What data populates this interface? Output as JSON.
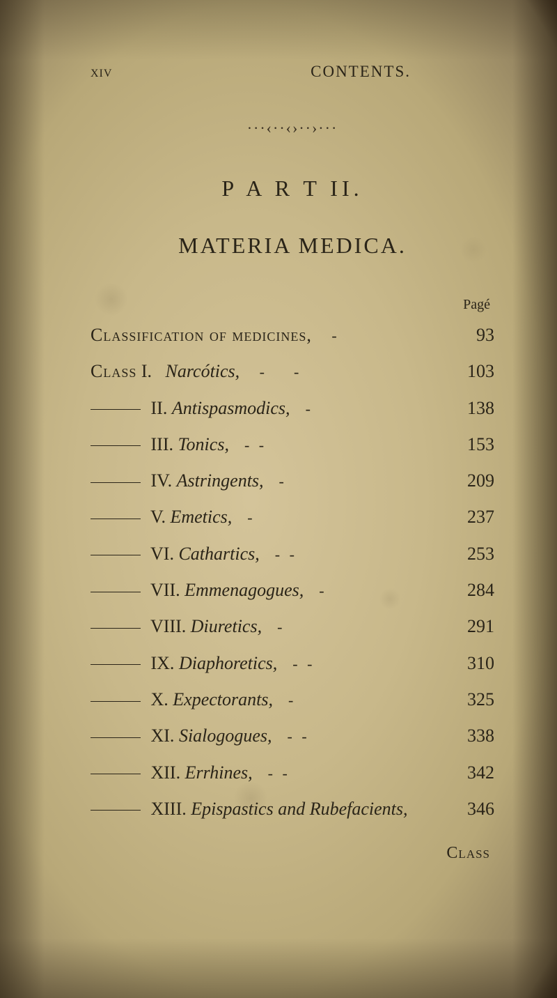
{
  "runningHead": {
    "left": "xiv",
    "right": "CONTENTS."
  },
  "ornament": "···‹··‹›··›···",
  "partTitle": "P A R T  II.",
  "mainTitle": "MATERIA MEDICA.",
  "pageLabel": "Pagé",
  "classificationLine": {
    "text": "Classification of medicines,",
    "hyphCount": 1,
    "page": "93"
  },
  "classLabel": "Class",
  "roman1": "I.",
  "narcoticsTitle": "Narcótics,",
  "narcoticsHyph": 2,
  "narcoticsPage": "103",
  "entries": [
    {
      "dashWidth": 72,
      "roman": "II.",
      "title": "Antispasmodics,",
      "hyphCount": 1,
      "page": "138"
    },
    {
      "dashWidth": 72,
      "roman": "III.",
      "title": "Tonics,",
      "hyphCount": 2,
      "page": "153"
    },
    {
      "dashWidth": 72,
      "roman": "IV.",
      "title": "Astringents,",
      "hyphCount": 1,
      "page": "209"
    },
    {
      "dashWidth": 72,
      "roman": "V.",
      "title": "Emetics,",
      "hyphCount": 1,
      "page": "237"
    },
    {
      "dashWidth": 72,
      "roman": "VI.",
      "title": "Cathartics,",
      "hyphCount": 2,
      "page": "253"
    },
    {
      "dashWidth": 72,
      "roman": "VII.",
      "title": "Emmenagogues,",
      "hyphCount": 1,
      "page": "284"
    },
    {
      "dashWidth": 72,
      "roman": "VIII.",
      "title": "Diuretics,",
      "hyphCount": 1,
      "page": "291"
    },
    {
      "dashWidth": 72,
      "roman": "IX.",
      "title": "Diaphoretics,",
      "hyphCount": 2,
      "page": "310"
    },
    {
      "dashWidth": 72,
      "roman": "X.",
      "title": "Expectorants,",
      "hyphCount": 1,
      "page": "325"
    },
    {
      "dashWidth": 72,
      "roman": "XI.",
      "title": "Sialogogues,",
      "hyphCount": 2,
      "page": "338"
    },
    {
      "dashWidth": 72,
      "roman": "XII.",
      "title": "Errhines,",
      "hyphCount": 2,
      "page": "342"
    },
    {
      "dashWidth": 72,
      "roman": "XIII.",
      "title": "Epispastics and Rubefacients,",
      "hyphCount": 0,
      "page": "346"
    }
  ],
  "catchword": "Class"
}
